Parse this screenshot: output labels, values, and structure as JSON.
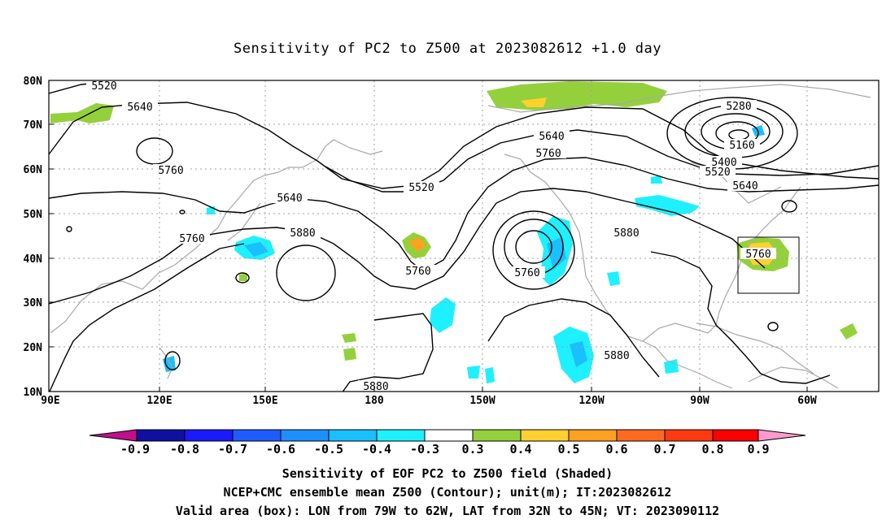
{
  "title": "Sensitivity of PC2 to Z500 at 2023082612 +1.0 day",
  "axes": {
    "lat_labels": [
      "80N",
      "70N",
      "60N",
      "50N",
      "40N",
      "30N",
      "20N",
      "10N"
    ],
    "lon_labels": [
      "90E",
      "120E",
      "150E",
      "180",
      "150W",
      "120W",
      "90W",
      "60W"
    ]
  },
  "contour_labels": [
    {
      "text": "5520"
    },
    {
      "text": "5640"
    },
    {
      "text": "5760"
    },
    {
      "text": "5640"
    },
    {
      "text": "5760"
    },
    {
      "text": "5880"
    },
    {
      "text": "5520"
    },
    {
      "text": "5640"
    },
    {
      "text": "5760"
    },
    {
      "text": "5760"
    },
    {
      "text": "5760"
    },
    {
      "text": "5880"
    },
    {
      "text": "5880"
    },
    {
      "text": "5280"
    },
    {
      "text": "5160"
    },
    {
      "text": "5400"
    },
    {
      "text": "5520"
    },
    {
      "text": "5640"
    },
    {
      "text": "5760"
    },
    {
      "text": "5880"
    }
  ],
  "colorbar": {
    "labels": [
      "-0.9",
      "-0.8",
      "-0.7",
      "-0.6",
      "-0.5",
      "-0.4",
      "-0.3",
      "0.3",
      "0.4",
      "0.5",
      "0.6",
      "0.7",
      "0.8",
      "0.9"
    ],
    "colors": [
      "#1010a0",
      "#1a1aff",
      "#1e5cff",
      "#1e8fff",
      "#19bfff",
      "#1ef0ff",
      "#ffffff",
      "#94d03c",
      "#ffd030",
      "#ffa020",
      "#ff6a20",
      "#ff3a10",
      "#ff0000"
    ],
    "low_end_color": "#c0108a",
    "high_end_color": "#ff9ad0"
  },
  "captions": [
    "Sensitivity of EOF PC2 to Z500 field (Shaded)",
    "NCEP+CMC ensemble mean Z500 (Contour); unit(m); IT:2023082612",
    "Valid area (box): LON from 79W to 62W, LAT from 32N to 45N; VT: 2023090112"
  ]
}
